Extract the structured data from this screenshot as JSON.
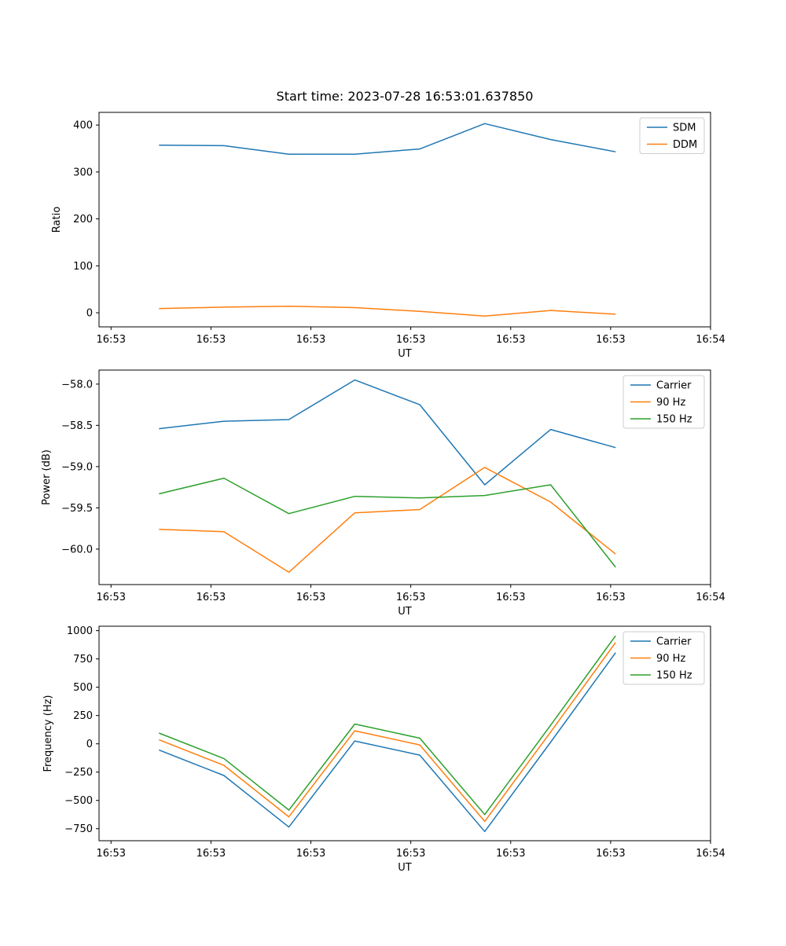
{
  "figure": {
    "title": "Start time: 2023-07-28 16:53:01.637850"
  },
  "chart_data": [
    {
      "type": "line",
      "title": "Start time: 2023-07-28 16:53:01.637850",
      "xlabel": "UT",
      "ylabel": "Ratio",
      "x_seconds_after_16_53": [
        4.8,
        11.3,
        17.8,
        24.4,
        30.9,
        37.4,
        44.0,
        50.5
      ],
      "xlim": [
        -1.2,
        60
      ],
      "xticks": [
        0,
        10,
        20,
        30,
        40,
        50,
        60
      ],
      "xticklabels": [
        "16:53",
        "16:53",
        "16:53",
        "16:53",
        "16:53",
        "16:53",
        "16:54"
      ],
      "ylim": [
        -30,
        427
      ],
      "yticks": [
        0,
        100,
        200,
        300,
        400
      ],
      "yticklabels": [
        "0",
        "100",
        "200",
        "300",
        "400"
      ],
      "grid": false,
      "legend_loc": "upper right",
      "series": [
        {
          "name": "SDM",
          "color": "#1f77b4",
          "values": [
            357,
            356,
            338,
            338,
            349,
            403,
            369,
            343
          ]
        },
        {
          "name": "DDM",
          "color": "#ff7f0e",
          "values": [
            9,
            12,
            14,
            11,
            3,
            -7,
            5,
            -3
          ]
        }
      ]
    },
    {
      "type": "line",
      "title": "",
      "xlabel": "UT",
      "ylabel": "Power (dB)",
      "x_seconds_after_16_53": [
        4.8,
        11.3,
        17.8,
        24.4,
        30.9,
        37.4,
        44.0,
        50.5
      ],
      "xlim": [
        -1.2,
        60
      ],
      "xticks": [
        0,
        10,
        20,
        30,
        40,
        50,
        60
      ],
      "xticklabels": [
        "16:53",
        "16:53",
        "16:53",
        "16:53",
        "16:53",
        "16:53",
        "16:54"
      ],
      "ylim": [
        -60.43,
        -57.83
      ],
      "yticks": [
        -60.0,
        -59.5,
        -59.0,
        -58.5,
        -58.0
      ],
      "yticklabels": [
        "−60.0",
        "−59.5",
        "−59.0",
        "−58.5",
        "−58.0"
      ],
      "grid": false,
      "legend_loc": "upper right",
      "series": [
        {
          "name": "Carrier",
          "color": "#1f77b4",
          "values": [
            -58.54,
            -58.45,
            -58.43,
            -57.95,
            -58.25,
            -59.22,
            -58.55,
            -58.77
          ]
        },
        {
          "name": "90 Hz",
          "color": "#ff7f0e",
          "values": [
            -59.76,
            -59.79,
            -60.28,
            -59.56,
            -59.52,
            -59.01,
            -59.43,
            -60.06
          ]
        },
        {
          "name": "150 Hz",
          "color": "#2ca02c",
          "values": [
            -59.33,
            -59.14,
            -59.57,
            -59.36,
            -59.38,
            -59.35,
            -59.22,
            -60.22
          ]
        }
      ]
    },
    {
      "type": "line",
      "title": "",
      "xlabel": "UT",
      "ylabel": "Frequency (Hz)",
      "x_seconds_after_16_53": [
        4.8,
        11.3,
        17.8,
        24.4,
        30.9,
        37.4,
        44.0,
        50.5
      ],
      "xlim": [
        -1.2,
        60
      ],
      "xticks": [
        0,
        10,
        20,
        30,
        40,
        50,
        60
      ],
      "xticklabels": [
        "16:53",
        "16:53",
        "16:53",
        "16:53",
        "16:53",
        "16:53",
        "16:54"
      ],
      "ylim": [
        -856,
        1039
      ],
      "yticks": [
        -750,
        -500,
        -250,
        0,
        250,
        500,
        750,
        1000
      ],
      "yticklabels": [
        "−750",
        "−500",
        "−250",
        "0",
        "250",
        "500",
        "750",
        "1000"
      ],
      "grid": false,
      "legend_loc": "upper right",
      "series": [
        {
          "name": "Carrier",
          "color": "#1f77b4",
          "values": [
            -55,
            -280,
            -735,
            25,
            -100,
            -775,
            15,
            805
          ]
        },
        {
          "name": "90 Hz",
          "color": "#ff7f0e",
          "values": [
            35,
            -190,
            -645,
            115,
            -10,
            -685,
            105,
            895
          ]
        },
        {
          "name": "150 Hz",
          "color": "#2ca02c",
          "values": [
            95,
            -130,
            -585,
            175,
            50,
            -625,
            165,
            955
          ]
        }
      ]
    }
  ]
}
